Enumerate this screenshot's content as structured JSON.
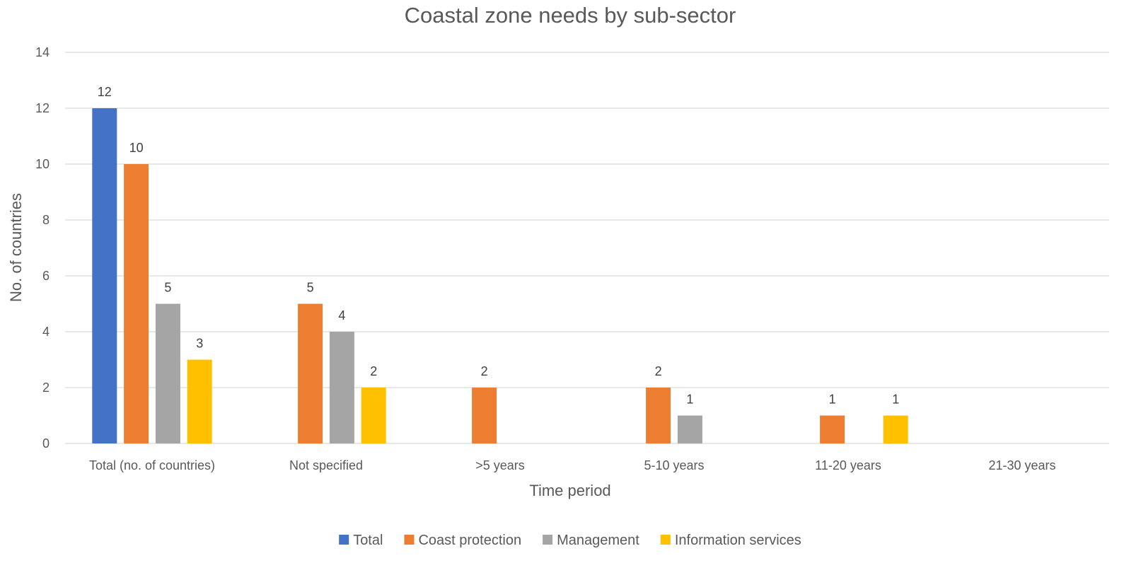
{
  "chart_data": {
    "type": "bar",
    "title": "Coastal zone needs by sub-sector",
    "xlabel": "Time period",
    "ylabel": "No. of countries",
    "ylim": [
      0,
      14
    ],
    "yticks": [
      0,
      2,
      4,
      6,
      8,
      10,
      12,
      14
    ],
    "grid": true,
    "legend_position": "bottom",
    "categories": [
      "Total (no. of countries)",
      "Not specified",
      ">5 years",
      "5-10 years",
      "11-20 years",
      "21-30 years"
    ],
    "series": [
      {
        "name": "Total",
        "color": "#4472C4",
        "values": [
          12,
          null,
          null,
          null,
          null,
          null
        ]
      },
      {
        "name": "Coast protection",
        "color": "#ED7D31",
        "values": [
          10,
          5,
          2,
          2,
          1,
          null
        ]
      },
      {
        "name": "Management",
        "color": "#A5A5A5",
        "values": [
          5,
          4,
          null,
          1,
          null,
          null
        ]
      },
      {
        "name": "Information services",
        "color": "#FFC000",
        "values": [
          3,
          2,
          null,
          null,
          1,
          null
        ]
      }
    ]
  }
}
